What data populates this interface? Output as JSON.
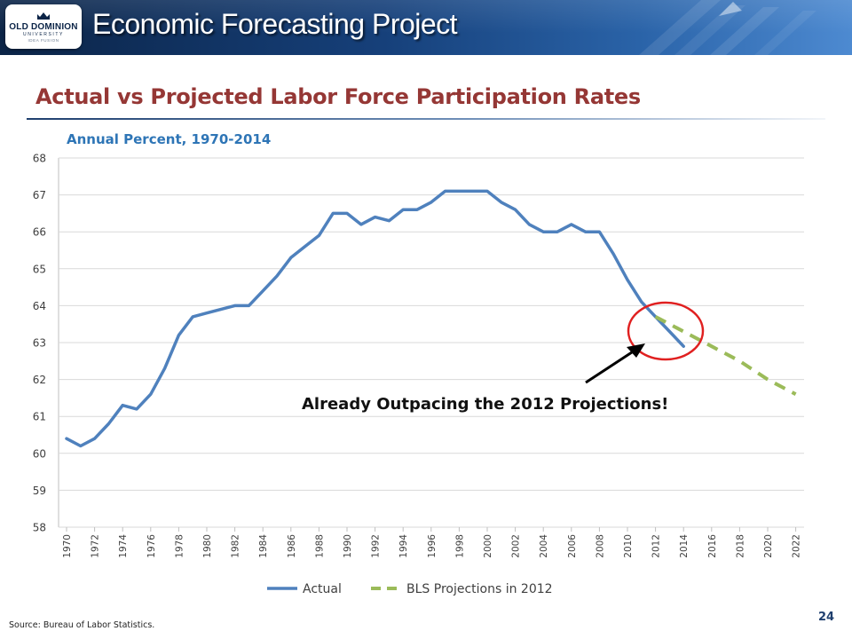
{
  "header": {
    "title": "Economic Forecasting Project",
    "logo": {
      "line1": "OLD DOMINION",
      "line2": "UNIVERSITY",
      "line3": "IDEA FUSION"
    }
  },
  "slide": {
    "title": "Actual vs Projected Labor Force Participation Rates",
    "subtitle": "Annual Percent, 1970-2014",
    "source": "Source: Bureau of Labor Statistics.",
    "page_number": "24"
  },
  "colors": {
    "actual": "#4f81bd",
    "projection": "#9bbb59",
    "title": "#953735",
    "subtitle": "#2e75b6",
    "highlight_circle": "#e02020"
  },
  "chart_data": {
    "type": "line",
    "title": "",
    "xlabel": "",
    "ylabel": "",
    "xlim": [
      1970,
      2022
    ],
    "ylim": [
      58,
      68
    ],
    "y_ticks": [
      "58",
      "59",
      "60",
      "61",
      "62",
      "63",
      "64",
      "65",
      "66",
      "67",
      "68"
    ],
    "x_ticks": [
      "1970",
      "1972",
      "1974",
      "1976",
      "1978",
      "1980",
      "1982",
      "1984",
      "1986",
      "1988",
      "1990",
      "1992",
      "1994",
      "1996",
      "1998",
      "2000",
      "2002",
      "2004",
      "2006",
      "2008",
      "2010",
      "2012",
      "2014",
      "2016",
      "2018",
      "2020",
      "2022"
    ],
    "grid": true,
    "legend_position": "bottom",
    "series": [
      {
        "name": "Actual",
        "style": "solid",
        "x": [
          1970,
          1971,
          1972,
          1973,
          1974,
          1975,
          1976,
          1977,
          1978,
          1979,
          1980,
          1981,
          1982,
          1983,
          1984,
          1985,
          1986,
          1987,
          1988,
          1989,
          1990,
          1991,
          1992,
          1993,
          1994,
          1995,
          1996,
          1997,
          1998,
          1999,
          2000,
          2001,
          2002,
          2003,
          2004,
          2005,
          2006,
          2007,
          2008,
          2009,
          2010,
          2011,
          2012,
          2013,
          2014
        ],
        "y": [
          60.4,
          60.2,
          60.4,
          60.8,
          61.3,
          61.2,
          61.6,
          62.3,
          63.2,
          63.7,
          63.8,
          63.9,
          64.0,
          64.0,
          64.4,
          64.8,
          65.3,
          65.6,
          65.9,
          66.5,
          66.5,
          66.2,
          66.4,
          66.3,
          66.6,
          66.6,
          66.8,
          67.1,
          67.1,
          67.1,
          67.1,
          66.8,
          66.6,
          66.2,
          66.0,
          66.0,
          66.2,
          66.0,
          66.0,
          65.4,
          64.7,
          64.1,
          63.7,
          63.3,
          62.9
        ]
      },
      {
        "name": "BLS Projections in 2012",
        "style": "dashed",
        "x": [
          2012,
          2014,
          2016,
          2018,
          2020,
          2022
        ],
        "y": [
          63.7,
          63.3,
          62.9,
          62.5,
          62.0,
          61.6
        ]
      }
    ],
    "annotations": [
      {
        "text": "Already Outpacing the 2012 Projections!"
      }
    ]
  }
}
